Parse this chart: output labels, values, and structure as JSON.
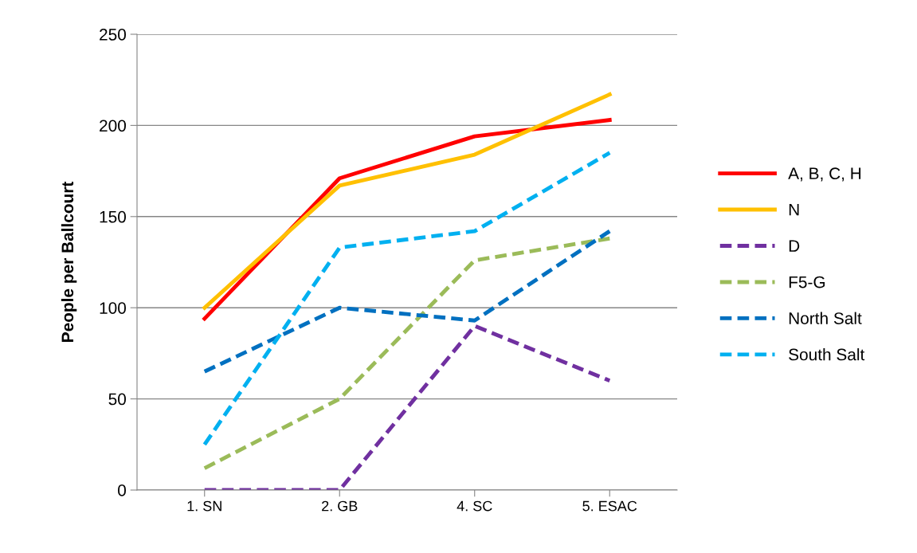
{
  "chart_data": {
    "type": "line",
    "ylabel": "People per Ballcourt",
    "categories": [
      "1. SN",
      "2. GB",
      "4. SC",
      "5. ESAC"
    ],
    "ylim": [
      0,
      250
    ],
    "yticks": [
      0,
      50,
      100,
      150,
      200,
      250
    ],
    "grid": "y",
    "legend": "right",
    "series": [
      {
        "name": "A, B, C, H",
        "color": "#ff0000",
        "line_style": "solid",
        "values": [
          94,
          171,
          194,
          203
        ]
      },
      {
        "name": "N",
        "color": "#ffc000",
        "line_style": "solid",
        "values": [
          100,
          167,
          184,
          217
        ]
      },
      {
        "name": "D",
        "color": "#7030a0",
        "line_style": "dashed",
        "values": [
          0,
          0,
          90,
          60
        ]
      },
      {
        "name": "F5-G",
        "color": "#9bbb59",
        "line_style": "dashed",
        "values": [
          12,
          50,
          126,
          138
        ]
      },
      {
        "name": "North Salt",
        "color": "#0070c0",
        "line_style": "dashed",
        "values": [
          65,
          100,
          93,
          142
        ]
      },
      {
        "name": "South Salt",
        "color": "#00b0f0",
        "line_style": "dashed",
        "values": [
          25,
          133,
          142,
          185
        ]
      }
    ]
  }
}
